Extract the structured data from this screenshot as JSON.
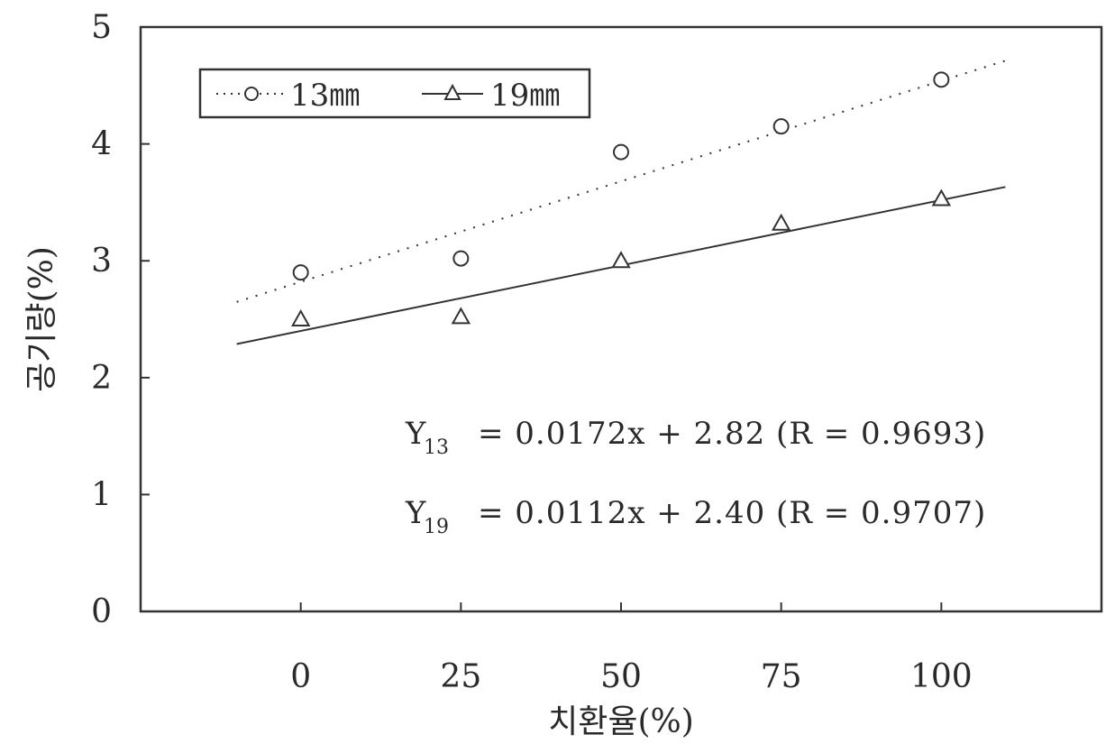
{
  "chart_data": {
    "type": "scatter",
    "title": "",
    "xlabel": "치환율(%)",
    "ylabel": "공기량(%)",
    "xlim": [
      -25,
      125
    ],
    "ylim": [
      0,
      5
    ],
    "x_ticks": [
      "0",
      "25",
      "50",
      "75",
      "100"
    ],
    "y_ticks": [
      "0",
      "1",
      "2",
      "3",
      "4",
      "5"
    ],
    "grid": false,
    "legend_position": "top-left",
    "series": [
      {
        "name": "13㎜",
        "marker": "circle",
        "line_style": "dotted",
        "x": [
          0,
          25,
          50,
          75,
          100
        ],
        "values": [
          2.9,
          3.02,
          3.93,
          4.15,
          4.55
        ],
        "trend": {
          "slope": 0.0172,
          "intercept": 2.82,
          "x_range": [
            -10,
            110
          ]
        },
        "color": "#333333"
      },
      {
        "name": "19㎜",
        "marker": "triangle",
        "line_style": "solid",
        "x": [
          0,
          25,
          50,
          75,
          100
        ],
        "values": [
          2.5,
          2.52,
          3.0,
          3.32,
          3.53
        ],
        "trend": {
          "slope": 0.0112,
          "intercept": 2.4,
          "x_range": [
            -10,
            110
          ]
        },
        "color": "#333333"
      }
    ],
    "annotations": [
      {
        "var": "Y",
        "sub": "13",
        "rest": "= 0.0172x + 2.82 (R = 0.9693)"
      },
      {
        "var": "Y",
        "sub": "19",
        "rest": "= 0.0112x + 2.40 (R = 0.9707)"
      }
    ]
  }
}
